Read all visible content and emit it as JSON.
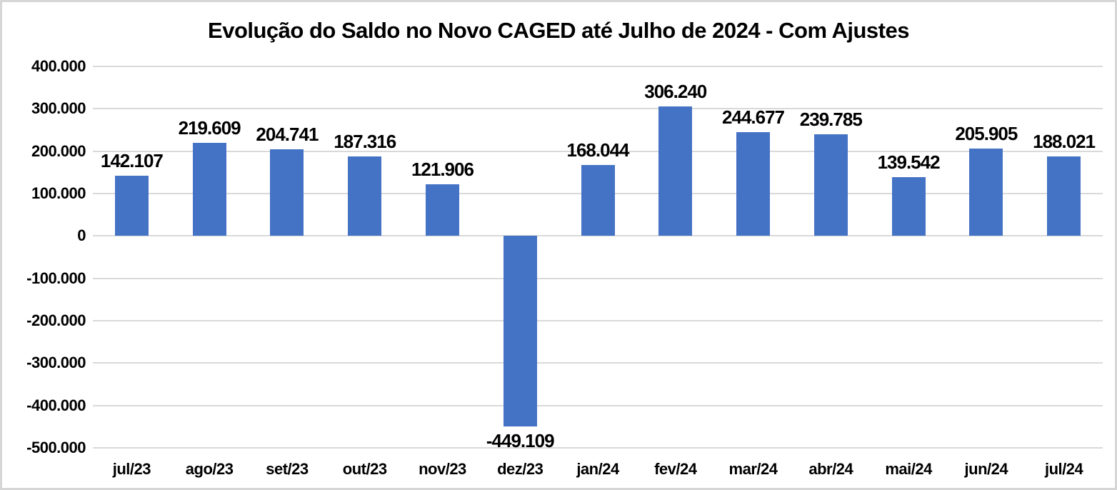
{
  "chart_data": {
    "type": "bar",
    "title": "Evolução do Saldo no Novo CAGED até Julho de 2024 - Com Ajustes",
    "categories": [
      "jul/23",
      "ago/23",
      "set/23",
      "out/23",
      "nov/23",
      "dez/23",
      "jan/24",
      "fev/24",
      "mar/24",
      "abr/24",
      "mai/24",
      "jun/24",
      "jul/24"
    ],
    "values": [
      142107,
      219609,
      204741,
      187316,
      121906,
      -449109,
      168044,
      306240,
      244677,
      239785,
      139542,
      205905,
      188021
    ],
    "value_labels": [
      "142.107",
      "219.609",
      "204.741",
      "187.316",
      "121.906",
      "-449.109",
      "168.044",
      "306.240",
      "244.677",
      "239.785",
      "139.542",
      "205.905",
      "188.021"
    ],
    "xlabel": "",
    "ylabel": "",
    "ylim": [
      -500000,
      400000
    ],
    "y_ticks": [
      {
        "label": "400.000",
        "value": 400000
      },
      {
        "label": "300.000",
        "value": 300000
      },
      {
        "label": "200.000",
        "value": 200000
      },
      {
        "label": "100.000",
        "value": 100000
      },
      {
        "label": "0",
        "value": 0
      },
      {
        "label": "-100.000",
        "value": -100000
      },
      {
        "label": "-200.000",
        "value": -200000
      },
      {
        "label": "-300.000",
        "value": -300000
      },
      {
        "label": "-400.000",
        "value": -400000
      },
      {
        "label": "-500.000",
        "value": -500000
      }
    ],
    "grid": true,
    "legend": false,
    "bar_color": "#4472C4",
    "gridline_color": "#D9D9D9"
  }
}
